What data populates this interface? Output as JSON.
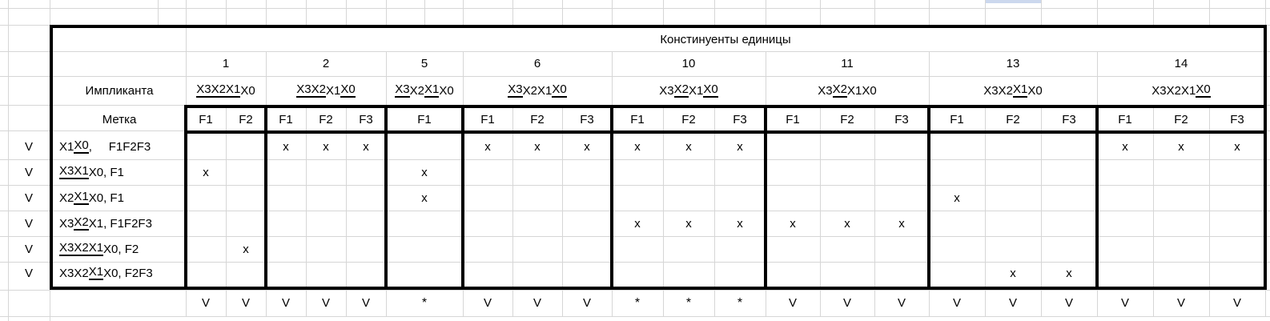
{
  "table": {
    "title": "Констинуенты единицы",
    "implicant_header": "Импликанта",
    "mark_header": "Метка",
    "groups": [
      {
        "number": "1",
        "var_segments": [
          {
            "t": "X3X2X1",
            "u": true
          },
          {
            "t": "X0"
          }
        ],
        "marks": [
          "F1",
          "F2"
        ]
      },
      {
        "number": "2",
        "var_segments": [
          {
            "t": "X3X2",
            "u": true
          },
          {
            "t": "X1"
          },
          {
            "t": "X0",
            "u": true
          }
        ],
        "marks": [
          "F1",
          "F2",
          "F3"
        ]
      },
      {
        "number": "5",
        "var_segments": [
          {
            "t": "X3",
            "u": true
          },
          {
            "t": "X2"
          },
          {
            "t": "X1",
            "u": true
          },
          {
            "t": "X0"
          }
        ],
        "marks": [
          "F1"
        ],
        "merged": true
      },
      {
        "number": "6",
        "var_segments": [
          {
            "t": "X3",
            "u": true
          },
          {
            "t": "X2X1"
          },
          {
            "t": "X0",
            "u": true
          }
        ],
        "marks": [
          "F1",
          "F2",
          "F3"
        ]
      },
      {
        "number": "10",
        "var_segments": [
          {
            "t": "X3"
          },
          {
            "t": "X2",
            "u": true
          },
          {
            "t": "X1"
          },
          {
            "t": "X0",
            "u": true
          }
        ],
        "marks": [
          "F1",
          "F2",
          "F3"
        ]
      },
      {
        "number": "11",
        "var_segments": [
          {
            "t": "X3"
          },
          {
            "t": "X2",
            "u": true
          },
          {
            "t": "X1X0"
          }
        ],
        "marks": [
          "F1",
          "F2",
          "F3"
        ]
      },
      {
        "number": "13",
        "var_segments": [
          {
            "t": "X3X2"
          },
          {
            "t": "X1",
            "u": true
          },
          {
            "t": "X0"
          }
        ],
        "marks": [
          "F1",
          "F2",
          "F3"
        ]
      },
      {
        "number": "14",
        "var_segments": [
          {
            "t": "X3X2X1"
          },
          {
            "t": "X0",
            "u": true
          }
        ],
        "marks": [
          "F1",
          "F2",
          "F3"
        ]
      }
    ],
    "rows": [
      {
        "check": "V",
        "label_segments": [
          {
            "t": "X1"
          },
          {
            "t": "X0",
            "u": true
          },
          {
            "t": ",     F1F2F3"
          }
        ],
        "cells": [
          [
            "",
            ""
          ],
          [
            "x",
            "x",
            "x"
          ],
          [
            ""
          ],
          [
            "x",
            "x",
            "x"
          ],
          [
            "x",
            "x",
            "x"
          ],
          [
            "",
            "",
            ""
          ],
          [
            "",
            "",
            ""
          ],
          [
            "x",
            "x",
            "x"
          ]
        ]
      },
      {
        "check": "V",
        "label_segments": [
          {
            "t": "X3X1",
            "u": true
          },
          {
            "t": "X0, F1"
          }
        ],
        "cells": [
          [
            "x",
            ""
          ],
          [
            "",
            "",
            ""
          ],
          [
            "x"
          ],
          [
            "",
            "",
            ""
          ],
          [
            "",
            "",
            ""
          ],
          [
            "",
            "",
            ""
          ],
          [
            "",
            "",
            ""
          ],
          [
            "",
            "",
            ""
          ]
        ]
      },
      {
        "check": "V",
        "label_segments": [
          {
            "t": "X2"
          },
          {
            "t": "X1",
            "u": true
          },
          {
            "t": "X0, F1"
          }
        ],
        "cells": [
          [
            "",
            ""
          ],
          [
            "",
            "",
            ""
          ],
          [
            "x"
          ],
          [
            "",
            "",
            ""
          ],
          [
            "",
            "",
            ""
          ],
          [
            "",
            "",
            ""
          ],
          [
            "x",
            "",
            ""
          ],
          [
            "",
            "",
            ""
          ]
        ]
      },
      {
        "check": "V",
        "label_segments": [
          {
            "t": "X3"
          },
          {
            "t": "X2",
            "u": true
          },
          {
            "t": "X1, F1F2F3"
          }
        ],
        "cells": [
          [
            "",
            ""
          ],
          [
            "",
            "",
            ""
          ],
          [
            ""
          ],
          [
            "",
            "",
            ""
          ],
          [
            "x",
            "x",
            "x"
          ],
          [
            "x",
            "x",
            "x"
          ],
          [
            "",
            "",
            ""
          ],
          [
            "",
            "",
            ""
          ]
        ]
      },
      {
        "check": "V",
        "label_segments": [
          {
            "t": "X3X2X1",
            "u": true
          },
          {
            "t": "X0, F2"
          }
        ],
        "cells": [
          [
            "",
            "x"
          ],
          [
            "",
            "",
            ""
          ],
          [
            ""
          ],
          [
            "",
            "",
            ""
          ],
          [
            "",
            "",
            ""
          ],
          [
            "",
            "",
            ""
          ],
          [
            "",
            "",
            ""
          ],
          [
            "",
            "",
            ""
          ]
        ]
      },
      {
        "check": "V",
        "label_segments": [
          {
            "t": "X3X2"
          },
          {
            "t": "X1",
            "u": true
          },
          {
            "t": "X0, F2F3"
          }
        ],
        "cells": [
          [
            "",
            ""
          ],
          [
            "",
            "",
            ""
          ],
          [
            ""
          ],
          [
            "",
            "",
            ""
          ],
          [
            "",
            "",
            ""
          ],
          [
            "",
            "",
            ""
          ],
          [
            "",
            "x",
            "x"
          ],
          [
            "",
            "",
            ""
          ]
        ]
      }
    ],
    "bottom_marks": [
      [
        "V",
        "V"
      ],
      [
        "V",
        "V",
        "V"
      ],
      [
        "*"
      ],
      [
        "V",
        "V",
        "V"
      ],
      [
        "*",
        "*",
        "*"
      ],
      [
        "V",
        "V",
        "V"
      ],
      [
        "V",
        "V",
        "V"
      ],
      [
        "V",
        "V",
        "V"
      ]
    ]
  },
  "colors": {
    "grid": "#d6d6d6",
    "border": "#000000",
    "selection": "#ccd8ee",
    "text": "#000000"
  }
}
